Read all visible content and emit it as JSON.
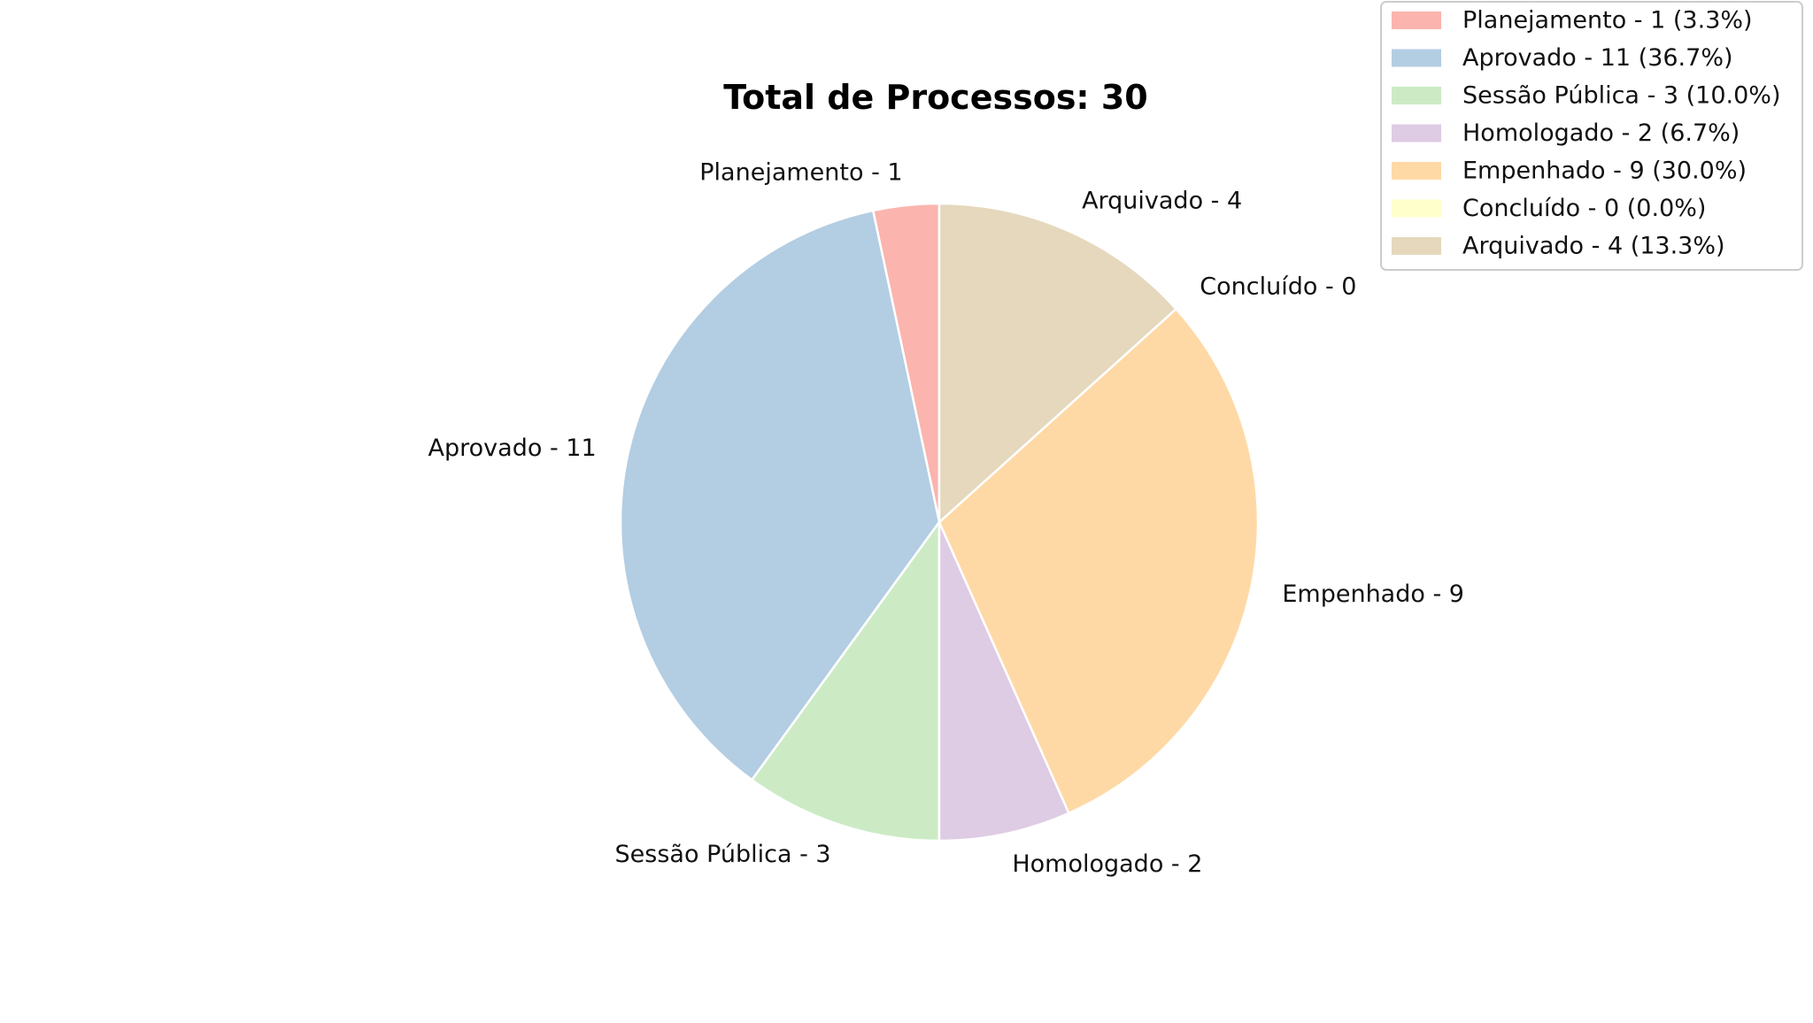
{
  "chart_data": {
    "type": "pie",
    "title": "Total de Processos: 30",
    "start_angle_deg": 90,
    "direction": "counterclockwise",
    "legend_position": "top-right",
    "slices": [
      {
        "label": "Planejamento",
        "value": 1,
        "color": "#fbb4ae",
        "slice_label": "Planejamento - 1",
        "legend_label": "Planejamento - 1 (3.3%)"
      },
      {
        "label": "Aprovado",
        "value": 11,
        "color": "#b3cde3",
        "slice_label": "Aprovado - 11",
        "legend_label": "Aprovado - 11 (36.7%)"
      },
      {
        "label": "Sessão Pública",
        "value": 3,
        "color": "#ccebc5",
        "slice_label": "Sessão Pública - 3",
        "legend_label": "Sessão Pública - 3 (10.0%)"
      },
      {
        "label": "Homologado",
        "value": 2,
        "color": "#decbe4",
        "slice_label": "Homologado - 2",
        "legend_label": "Homologado - 2 (6.7%)"
      },
      {
        "label": "Empenhado",
        "value": 9,
        "color": "#fed9a6",
        "slice_label": "Empenhado - 9",
        "legend_label": "Empenhado - 9 (30.0%)"
      },
      {
        "label": "Concluído",
        "value": 0,
        "color": "#ffffcc",
        "slice_label": "Concluído - 0",
        "legend_label": "Concluído - 0 (0.0%)"
      },
      {
        "label": "Arquivado",
        "value": 4,
        "color": "#e5d8bd",
        "slice_label": "Arquivado - 4",
        "legend_label": "Arquivado - 4 (13.3%)"
      }
    ]
  }
}
